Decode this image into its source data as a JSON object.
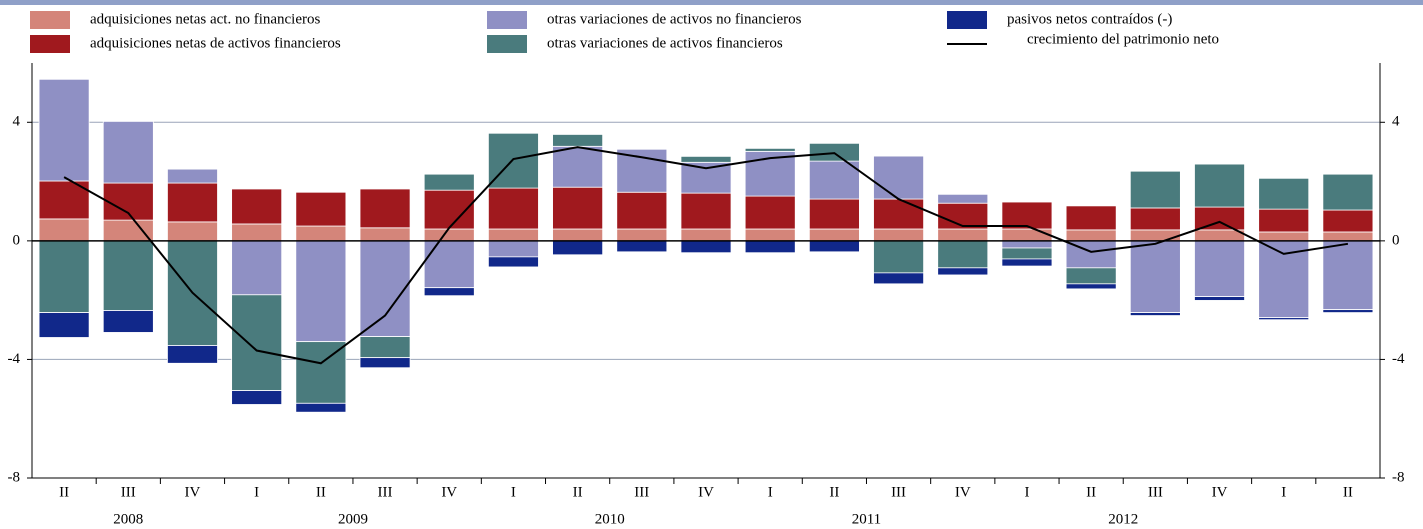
{
  "chart_data": {
    "type": "bar",
    "categories": [
      "II",
      "III",
      "IV",
      "I",
      "II",
      "III",
      "IV",
      "I",
      "II",
      "III",
      "IV",
      "I",
      "II",
      "III",
      "IV",
      "I",
      "II",
      "III",
      "IV",
      "I",
      "II"
    ],
    "category_years": [
      "2008",
      "2008",
      "2008",
      "2009",
      "2009",
      "2009",
      "2009",
      "2010",
      "2010",
      "2010",
      "2010",
      "2011",
      "2011",
      "2011",
      "2011",
      "2012",
      "2012",
      "2012",
      "2012",
      null,
      null
    ],
    "series": [
      {
        "name": "adquisiciones netas act. no financieros",
        "color": "#d4857a",
        "values": [
          0.74,
          0.7,
          0.64,
          0.57,
          0.5,
          0.44,
          0.4,
          0.4,
          0.4,
          0.4,
          0.4,
          0.4,
          0.4,
          0.4,
          0.4,
          0.4,
          0.37,
          0.37,
          0.37,
          0.3,
          0.3
        ]
      },
      {
        "name": "adquisiciones netas de activos financieros",
        "color": "#a0191e",
        "values": [
          1.28,
          1.25,
          1.31,
          1.18,
          1.14,
          1.31,
          1.31,
          1.38,
          1.41,
          1.24,
          1.21,
          1.11,
          1.01,
          1.01,
          0.87,
          0.91,
          0.81,
          0.74,
          0.77,
          0.77,
          0.74
        ]
      },
      {
        "name": "otras variaciones de activos no financieros",
        "color": "#8f90c4",
        "values": [
          3.43,
          2.08,
          0.47,
          -1.82,
          -3.4,
          -3.23,
          -1.58,
          -0.54,
          1.38,
          1.45,
          1.04,
          1.51,
          1.28,
          1.45,
          0.3,
          -0.24,
          -0.91,
          -2.42,
          -1.88,
          -2.59,
          -2.32
        ]
      },
      {
        "name": "otras variaciones de activos financieros",
        "color": "#4a7b7d",
        "values": [
          -2.42,
          -2.35,
          -3.53,
          -3.23,
          -2.08,
          -0.71,
          0.54,
          1.85,
          0.4,
          0,
          0.2,
          0.1,
          0.6,
          -1.08,
          -0.91,
          -0.37,
          -0.54,
          1.24,
          1.45,
          1.04,
          1.21
        ]
      },
      {
        "name": "pasivos netos contraídos (-)",
        "color": "#11288a",
        "values": [
          -0.84,
          -0.74,
          -0.6,
          -0.47,
          -0.3,
          -0.34,
          -0.27,
          -0.34,
          -0.47,
          -0.37,
          -0.4,
          -0.4,
          -0.37,
          -0.37,
          -0.24,
          -0.24,
          -0.17,
          -0.1,
          -0.13,
          -0.07,
          -0.1
        ]
      }
    ],
    "line": {
      "name": "crecimiento del patrimonio neto",
      "color": "#000000",
      "values": [
        2.15,
        0.94,
        -1.75,
        -3.7,
        -4.13,
        -2.52,
        0.44,
        2.76,
        3.16,
        2.82,
        2.45,
        2.79,
        2.96,
        1.41,
        0.5,
        0.5,
        -0.37,
        -0.1,
        0.64,
        -0.44,
        -0.1
      ]
    },
    "ylim": [
      -8,
      6
    ],
    "yticks": [
      -8,
      -4,
      0,
      4
    ],
    "grid": true
  }
}
